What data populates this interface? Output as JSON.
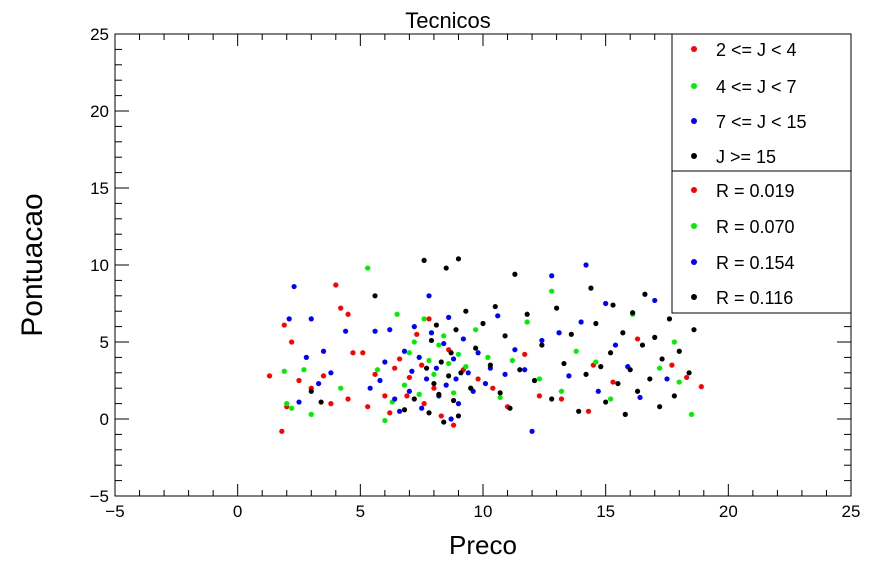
{
  "chart_data": {
    "type": "scatter",
    "title": "Tecnicos",
    "xlabel": "Preco",
    "ylabel": "Pontuacao",
    "xlim": [
      -5,
      25
    ],
    "ylim": [
      -5,
      25
    ],
    "x_ticks": [
      -5,
      0,
      5,
      10,
      15,
      20,
      25
    ],
    "y_ticks": [
      -5,
      0,
      5,
      10,
      15,
      20,
      25
    ],
    "x_tick_labels": [
      "−5",
      "0",
      "5",
      "10",
      "15",
      "20",
      "25"
    ],
    "y_tick_labels": [
      "−5",
      "0",
      "5",
      "10",
      "15",
      "20",
      "25"
    ],
    "grid": false,
    "legend_position": "top-right",
    "legend": [
      {
        "label": "2 <= J < 4",
        "color": "#ff0000"
      },
      {
        "label": "4 <= J < 7",
        "color": "#00ee00"
      },
      {
        "label": "7 <= J < 15",
        "color": "#0000ff"
      },
      {
        "label": "J >= 15",
        "color": "#000000"
      }
    ],
    "correlations": [
      {
        "label": "R = 0.019",
        "color": "#ff0000"
      },
      {
        "label": "R = 0.070",
        "color": "#00ee00"
      },
      {
        "label": "R = 0.154",
        "color": "#0000ff"
      },
      {
        "label": "R = 0.116",
        "color": "#000000"
      }
    ],
    "series": [
      {
        "name": "2 <= J < 4",
        "color": "#ff0000",
        "points": [
          [
            1.3,
            2.8
          ],
          [
            1.8,
            -0.8
          ],
          [
            1.9,
            6.1
          ],
          [
            2.0,
            0.8
          ],
          [
            2.2,
            5.0
          ],
          [
            2.5,
            2.5
          ],
          [
            3.0,
            2.0
          ],
          [
            3.5,
            2.8
          ],
          [
            3.8,
            1.0
          ],
          [
            4.0,
            8.7
          ],
          [
            4.2,
            7.2
          ],
          [
            4.5,
            6.8
          ],
          [
            4.5,
            1.3
          ],
          [
            4.7,
            4.3
          ],
          [
            5.1,
            4.3
          ],
          [
            5.3,
            0.8
          ],
          [
            5.6,
            2.9
          ],
          [
            6.0,
            1.5
          ],
          [
            6.2,
            0.4
          ],
          [
            6.4,
            3.3
          ],
          [
            6.6,
            3.9
          ],
          [
            6.9,
            1.5
          ],
          [
            7.0,
            2.7
          ],
          [
            7.3,
            5.5
          ],
          [
            7.5,
            3.5
          ],
          [
            7.6,
            1.0
          ],
          [
            7.8,
            6.5
          ],
          [
            8.0,
            2.0
          ],
          [
            8.3,
            0.2
          ],
          [
            8.6,
            4.5
          ],
          [
            8.8,
            -0.4
          ],
          [
            9.2,
            3.2
          ],
          [
            9.8,
            2.6
          ],
          [
            10.4,
            2.0
          ],
          [
            11.0,
            0.8
          ],
          [
            11.7,
            4.2
          ],
          [
            12.3,
            1.5
          ],
          [
            13.2,
            1.3
          ],
          [
            14.3,
            0.5
          ],
          [
            14.5,
            3.5
          ],
          [
            15.3,
            2.4
          ],
          [
            16.3,
            5.2
          ],
          [
            17.7,
            3.5
          ],
          [
            18.3,
            2.7
          ],
          [
            18.9,
            2.1
          ]
        ]
      },
      {
        "name": "4 <= J < 7",
        "color": "#00ee00",
        "points": [
          [
            1.9,
            3.1
          ],
          [
            2.0,
            1.0
          ],
          [
            2.2,
            0.7
          ],
          [
            2.7,
            3.2
          ],
          [
            3.0,
            0.3
          ],
          [
            4.2,
            2.0
          ],
          [
            5.3,
            9.8
          ],
          [
            5.7,
            3.2
          ],
          [
            6.0,
            -0.1
          ],
          [
            6.3,
            1.1
          ],
          [
            6.5,
            6.8
          ],
          [
            6.8,
            2.2
          ],
          [
            7.0,
            4.3
          ],
          [
            7.2,
            5.0
          ],
          [
            7.4,
            1.6
          ],
          [
            7.6,
            6.5
          ],
          [
            7.8,
            3.8
          ],
          [
            8.0,
            2.9
          ],
          [
            8.2,
            4.8
          ],
          [
            8.4,
            5.4
          ],
          [
            8.6,
            3.6
          ],
          [
            8.8,
            1.7
          ],
          [
            9.0,
            4.2
          ],
          [
            9.3,
            3.4
          ],
          [
            9.5,
            2.0
          ],
          [
            9.7,
            5.8
          ],
          [
            10.2,
            4.0
          ],
          [
            10.7,
            1.4
          ],
          [
            11.2,
            3.8
          ],
          [
            11.8,
            6.3
          ],
          [
            12.3,
            2.6
          ],
          [
            12.8,
            8.3
          ],
          [
            13.2,
            1.8
          ],
          [
            13.8,
            4.4
          ],
          [
            14.6,
            3.7
          ],
          [
            15.2,
            1.3
          ],
          [
            16.1,
            6.8
          ],
          [
            17.2,
            3.3
          ],
          [
            17.8,
            5.0
          ],
          [
            18.0,
            2.4
          ],
          [
            18.5,
            0.3
          ]
        ]
      },
      {
        "name": "7 <= J < 15",
        "color": "#0000ff",
        "points": [
          [
            2.1,
            6.5
          ],
          [
            2.3,
            8.6
          ],
          [
            2.5,
            1.1
          ],
          [
            2.8,
            4.0
          ],
          [
            3.0,
            6.5
          ],
          [
            3.3,
            2.3
          ],
          [
            3.5,
            4.4
          ],
          [
            3.8,
            3.0
          ],
          [
            4.4,
            5.7
          ],
          [
            5.4,
            2.0
          ],
          [
            5.6,
            5.7
          ],
          [
            5.8,
            2.5
          ],
          [
            6.0,
            3.7
          ],
          [
            6.2,
            5.8
          ],
          [
            6.4,
            1.3
          ],
          [
            6.6,
            0.5
          ],
          [
            6.8,
            4.4
          ],
          [
            7.0,
            1.8
          ],
          [
            7.1,
            3.1
          ],
          [
            7.2,
            6.0
          ],
          [
            7.4,
            4.0
          ],
          [
            7.5,
            0.7
          ],
          [
            7.7,
            2.6
          ],
          [
            7.8,
            8.0
          ],
          [
            7.9,
            5.6
          ],
          [
            8.1,
            3.3
          ],
          [
            8.2,
            1.5
          ],
          [
            8.4,
            4.9
          ],
          [
            8.5,
            2.2
          ],
          [
            8.6,
            6.6
          ],
          [
            8.7,
            0.0
          ],
          [
            8.8,
            3.9
          ],
          [
            8.9,
            2.6
          ],
          [
            9.0,
            1.0
          ],
          [
            9.2,
            5.2
          ],
          [
            9.4,
            3.0
          ],
          [
            9.6,
            1.8
          ],
          [
            9.8,
            4.3
          ],
          [
            10.1,
            2.3
          ],
          [
            10.3,
            3.3
          ],
          [
            10.6,
            6.7
          ],
          [
            10.9,
            2.9
          ],
          [
            11.3,
            4.5
          ],
          [
            11.7,
            3.2
          ],
          [
            12.0,
            -0.8
          ],
          [
            12.4,
            5.1
          ],
          [
            12.8,
            9.3
          ],
          [
            13.1,
            5.6
          ],
          [
            13.5,
            2.8
          ],
          [
            14.0,
            6.3
          ],
          [
            14.2,
            10.0
          ],
          [
            14.7,
            1.8
          ],
          [
            15.0,
            7.5
          ],
          [
            15.4,
            4.8
          ],
          [
            15.9,
            3.4
          ],
          [
            16.4,
            1.4
          ],
          [
            17.0,
            7.7
          ],
          [
            17.5,
            2.6
          ],
          [
            18.0,
            7.4
          ]
        ]
      },
      {
        "name": "J >= 15",
        "color": "#000000",
        "points": [
          [
            3.0,
            1.8
          ],
          [
            3.4,
            1.1
          ],
          [
            5.6,
            8.0
          ],
          [
            6.8,
            0.6
          ],
          [
            7.2,
            1.3
          ],
          [
            7.6,
            10.3
          ],
          [
            7.7,
            3.3
          ],
          [
            7.8,
            0.4
          ],
          [
            7.9,
            5.1
          ],
          [
            8.0,
            2.3
          ],
          [
            8.1,
            6.1
          ],
          [
            8.2,
            1.6
          ],
          [
            8.3,
            3.7
          ],
          [
            8.4,
            -0.2
          ],
          [
            8.5,
            9.8
          ],
          [
            8.6,
            2.8
          ],
          [
            8.7,
            4.3
          ],
          [
            8.8,
            1.2
          ],
          [
            8.9,
            5.8
          ],
          [
            9.0,
            10.4
          ],
          [
            9.0,
            0.2
          ],
          [
            9.1,
            3.0
          ],
          [
            9.3,
            7.0
          ],
          [
            9.5,
            2.0
          ],
          [
            9.7,
            4.6
          ],
          [
            10.0,
            6.2
          ],
          [
            10.3,
            3.5
          ],
          [
            10.5,
            7.3
          ],
          [
            10.7,
            1.7
          ],
          [
            10.9,
            5.4
          ],
          [
            11.1,
            0.7
          ],
          [
            11.3,
            9.4
          ],
          [
            11.5,
            3.2
          ],
          [
            11.8,
            6.8
          ],
          [
            12.1,
            2.5
          ],
          [
            12.4,
            4.8
          ],
          [
            12.8,
            1.3
          ],
          [
            13.0,
            7.2
          ],
          [
            13.3,
            3.6
          ],
          [
            13.6,
            5.5
          ],
          [
            13.9,
            0.5
          ],
          [
            14.2,
            2.9
          ],
          [
            14.4,
            8.5
          ],
          [
            14.6,
            6.2
          ],
          [
            14.8,
            3.4
          ],
          [
            15.0,
            1.1
          ],
          [
            15.2,
            4.3
          ],
          [
            15.3,
            7.4
          ],
          [
            15.5,
            2.3
          ],
          [
            15.7,
            5.6
          ],
          [
            15.8,
            0.3
          ],
          [
            16.0,
            3.2
          ],
          [
            16.1,
            6.9
          ],
          [
            16.3,
            1.8
          ],
          [
            16.5,
            4.8
          ],
          [
            16.6,
            8.1
          ],
          [
            16.8,
            2.6
          ],
          [
            17.0,
            5.3
          ],
          [
            17.2,
            0.8
          ],
          [
            17.3,
            3.9
          ],
          [
            17.6,
            6.5
          ],
          [
            17.8,
            1.5
          ],
          [
            18.0,
            4.4
          ],
          [
            18.2,
            8.0
          ],
          [
            18.4,
            3.0
          ],
          [
            18.6,
            5.8
          ]
        ]
      }
    ]
  }
}
